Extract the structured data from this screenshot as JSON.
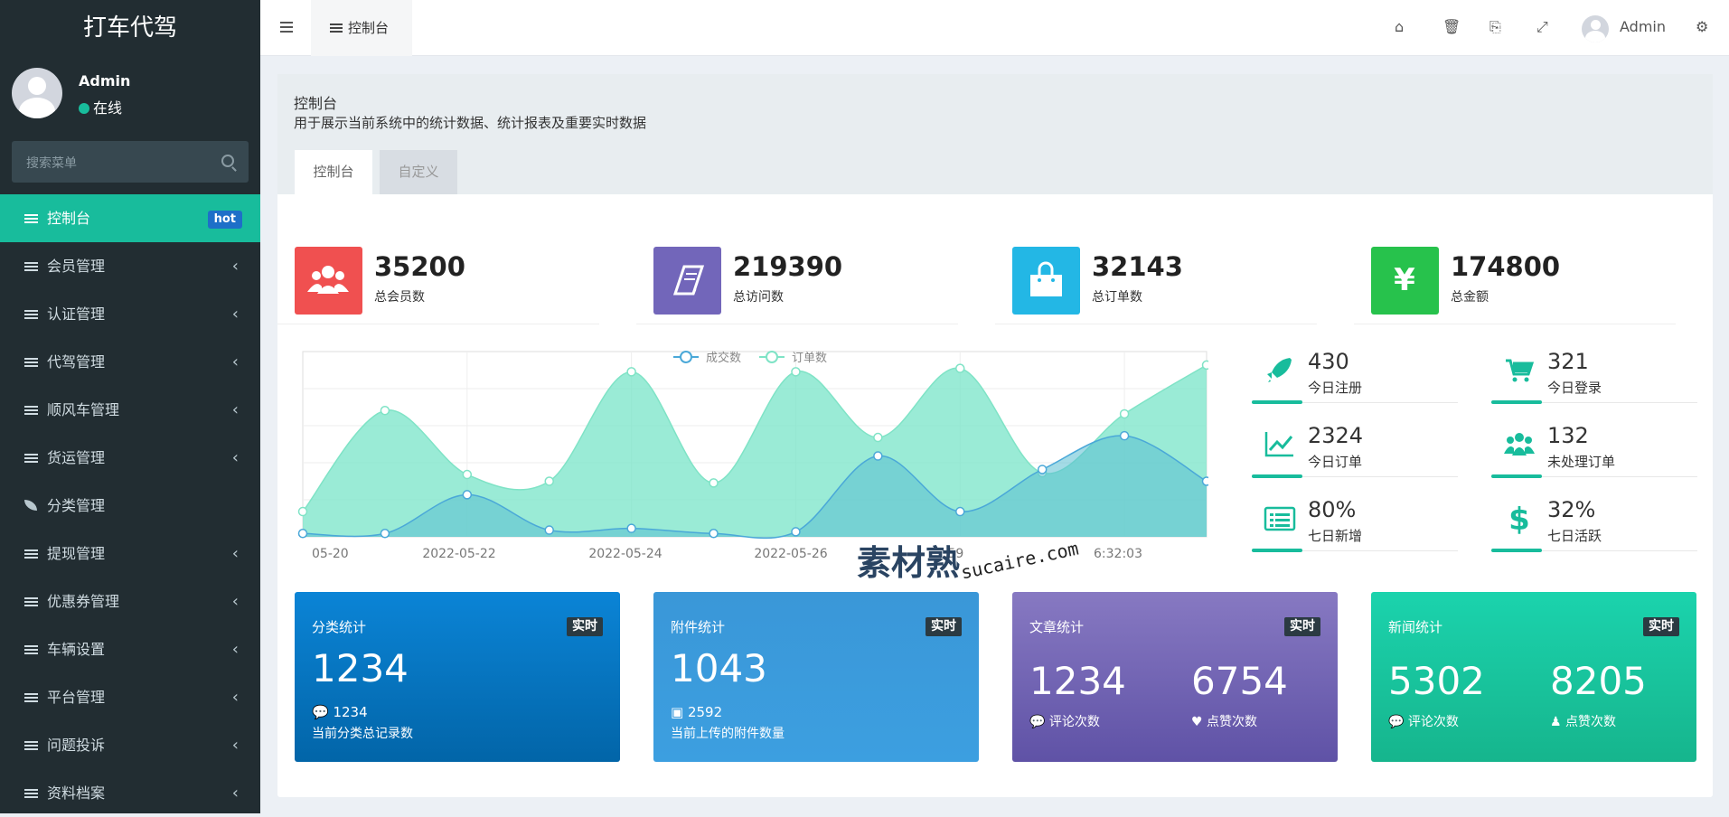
{
  "app": {
    "title": "打车代驾"
  },
  "user": {
    "name": "Admin",
    "status": "在线"
  },
  "search": {
    "placeholder": "搜索菜单"
  },
  "menu": [
    {
      "label": "控制台",
      "badge": "hot",
      "active": true
    },
    {
      "label": "会员管理"
    },
    {
      "label": "认证管理"
    },
    {
      "label": "代驾管理"
    },
    {
      "label": "顺风车管理"
    },
    {
      "label": "货运管理"
    },
    {
      "label": "分类管理"
    },
    {
      "label": "提现管理"
    },
    {
      "label": "优惠券管理"
    },
    {
      "label": "车辆设置"
    },
    {
      "label": "平台管理"
    },
    {
      "label": "问题投诉"
    },
    {
      "label": "资料档案"
    }
  ],
  "topbar": {
    "tab": "控制台",
    "user": "Admin",
    "icons": [
      "home-icon",
      "trash-icon",
      "translate-icon",
      "fullscreen-icon",
      "settings-icon"
    ]
  },
  "page": {
    "title": "控制台",
    "desc": "用于展示当前系统中的统计数据、统计报表及重要实时数据",
    "tabs": [
      "控制台",
      "自定义"
    ]
  },
  "stats": [
    {
      "value": "35200",
      "label": "总会员数",
      "color": "#f05050",
      "icon": "users-icon"
    },
    {
      "value": "219390",
      "label": "总访问数",
      "color": "#7266ba",
      "icon": "book-icon"
    },
    {
      "value": "32143",
      "label": "总订单数",
      "color": "#23b7e5",
      "icon": "shopping-bag-icon"
    },
    {
      "value": "174800",
      "label": "总金额",
      "color": "#27c24c",
      "icon": "yen-icon"
    }
  ],
  "chart_data": {
    "type": "area",
    "legend": [
      "成交数",
      "订单数"
    ],
    "x_tick_labels": [
      "05-20",
      "2022-05-22",
      "2022-05-24",
      "2022-05-26",
      ":59",
      "6:32:03"
    ],
    "series": [
      {
        "name": "成交数",
        "values": [
          2,
          2,
          25,
          4,
          5,
          2,
          3,
          48,
          15,
          40,
          60,
          33
        ]
      },
      {
        "name": "订单数",
        "values": [
          15,
          75,
          37,
          33,
          98,
          32,
          98,
          59,
          100,
          38,
          73,
          102
        ]
      }
    ],
    "ylim": [
      0,
      110
    ]
  },
  "mini_stats": [
    {
      "value": "430",
      "label": "今日注册",
      "icon": "rocket-icon"
    },
    {
      "value": "321",
      "label": "今日登录",
      "icon": "cart-icon"
    },
    {
      "value": "2324",
      "label": "今日订单",
      "icon": "line-chart-icon"
    },
    {
      "value": "132",
      "label": "未处理订单",
      "icon": "users-icon"
    },
    {
      "value": "80%",
      "label": "七日新增",
      "icon": "list-icon"
    },
    {
      "value": "32%",
      "label": "七日活跃",
      "icon": "dollar-icon"
    }
  ],
  "cards": [
    {
      "title": "分类统计",
      "badge": "实时",
      "big": "1234",
      "small": "1234",
      "sub": "当前分类总记录数"
    },
    {
      "title": "附件统计",
      "badge": "实时",
      "big": "1043",
      "small": "2592",
      "sub": "当前上传的附件数量"
    },
    {
      "title": "文章统计",
      "badge": "实时",
      "v1": "1234",
      "v2": "6754",
      "l1": "评论次数",
      "l2": "点赞次数"
    },
    {
      "title": "新闻统计",
      "badge": "实时",
      "v1": "5302",
      "v2": "8205",
      "l1": "评论次数",
      "l2": "点赞次数"
    }
  ],
  "watermark": {
    "text": "素材熟",
    "url": "sucaire.com"
  }
}
